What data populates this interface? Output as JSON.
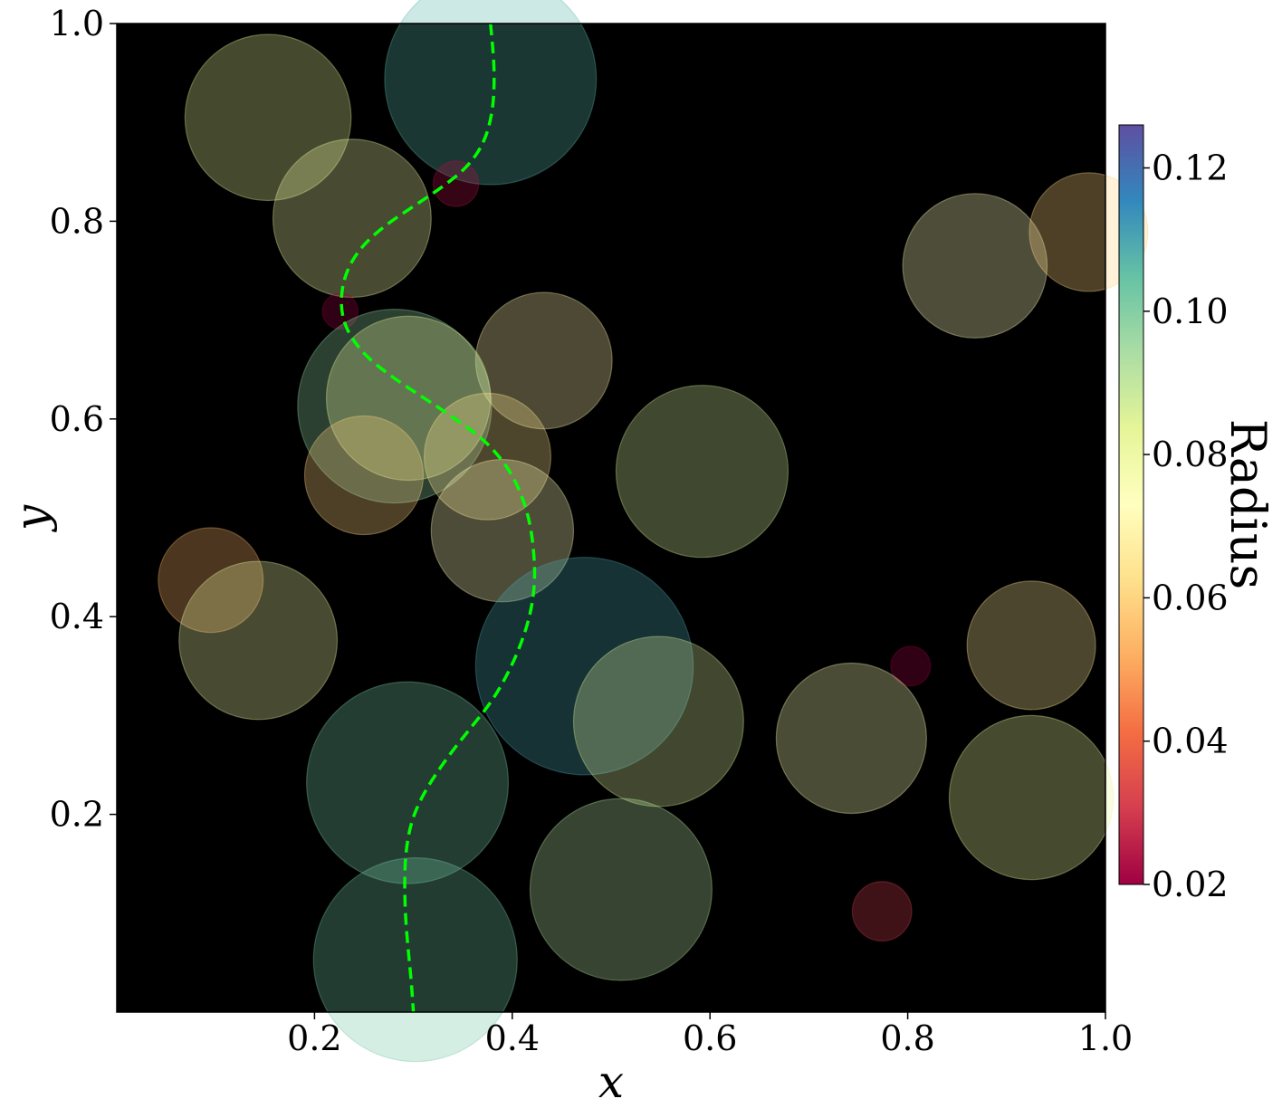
{
  "chart_data": {
    "type": "scatter",
    "xlabel": "x",
    "ylabel": "y",
    "xlim": [
      0,
      1
    ],
    "ylim": [
      0,
      1
    ],
    "x_ticks": [
      "0.2",
      "0.4",
      "0.6",
      "0.8",
      "1.0"
    ],
    "y_ticks": [
      "0.2",
      "0.4",
      "0.6",
      "0.8",
      "1.0"
    ],
    "background": "#000000",
    "grid": false,
    "colorbar": {
      "label": "Radius",
      "colormap": "Spectral",
      "range": [
        0.02,
        0.126
      ],
      "ticks": [
        "0.02",
        "0.04",
        "0.06",
        "0.08",
        "0.10",
        "0.12"
      ]
    },
    "circles": [
      {
        "x": 0.153,
        "y": 0.905,
        "r": 0.084
      },
      {
        "x": 0.378,
        "y": 0.944,
        "r": 0.107
      },
      {
        "x": 0.343,
        "y": 0.838,
        "r": 0.023
      },
      {
        "x": 0.238,
        "y": 0.803,
        "r": 0.08
      },
      {
        "x": 0.226,
        "y": 0.709,
        "r": 0.018
      },
      {
        "x": 0.432,
        "y": 0.659,
        "r": 0.069
      },
      {
        "x": 0.868,
        "y": 0.755,
        "r": 0.073
      },
      {
        "x": 0.983,
        "y": 0.789,
        "r": 0.06
      },
      {
        "x": 0.281,
        "y": 0.613,
        "r": 0.098
      },
      {
        "x": 0.295,
        "y": 0.621,
        "r": 0.083
      },
      {
        "x": 0.25,
        "y": 0.543,
        "r": 0.06
      },
      {
        "x": 0.375,
        "y": 0.562,
        "r": 0.064
      },
      {
        "x": 0.39,
        "y": 0.487,
        "r": 0.072
      },
      {
        "x": 0.592,
        "y": 0.547,
        "r": 0.087
      },
      {
        "x": 0.095,
        "y": 0.437,
        "r": 0.053
      },
      {
        "x": 0.143,
        "y": 0.376,
        "r": 0.08
      },
      {
        "x": 0.473,
        "y": 0.35,
        "r": 0.11
      },
      {
        "x": 0.548,
        "y": 0.294,
        "r": 0.086
      },
      {
        "x": 0.803,
        "y": 0.35,
        "r": 0.02
      },
      {
        "x": 0.743,
        "y": 0.277,
        "r": 0.076
      },
      {
        "x": 0.925,
        "y": 0.371,
        "r": 0.065
      },
      {
        "x": 0.925,
        "y": 0.217,
        "r": 0.083
      },
      {
        "x": 0.294,
        "y": 0.232,
        "r": 0.102
      },
      {
        "x": 0.51,
        "y": 0.124,
        "r": 0.092
      },
      {
        "x": 0.302,
        "y": 0.053,
        "r": 0.103
      },
      {
        "x": 0.774,
        "y": 0.102,
        "r": 0.03
      }
    ],
    "path": {
      "color": "#00ff00",
      "style": "dashed",
      "points": [
        [
          0.378,
          1.0
        ],
        [
          0.381,
          0.97
        ],
        [
          0.382,
          0.94
        ],
        [
          0.38,
          0.91
        ],
        [
          0.372,
          0.88
        ],
        [
          0.355,
          0.855
        ],
        [
          0.33,
          0.835
        ],
        [
          0.3,
          0.815
        ],
        [
          0.27,
          0.795
        ],
        [
          0.245,
          0.772
        ],
        [
          0.23,
          0.745
        ],
        [
          0.226,
          0.715
        ],
        [
          0.232,
          0.69
        ],
        [
          0.25,
          0.665
        ],
        [
          0.275,
          0.645
        ],
        [
          0.3,
          0.628
        ],
        [
          0.325,
          0.612
        ],
        [
          0.345,
          0.598
        ],
        [
          0.365,
          0.584
        ],
        [
          0.382,
          0.568
        ],
        [
          0.398,
          0.547
        ],
        [
          0.41,
          0.522
        ],
        [
          0.418,
          0.495
        ],
        [
          0.422,
          0.465
        ],
        [
          0.423,
          0.435
        ],
        [
          0.419,
          0.405
        ],
        [
          0.41,
          0.375
        ],
        [
          0.397,
          0.345
        ],
        [
          0.38,
          0.315
        ],
        [
          0.36,
          0.29
        ],
        [
          0.34,
          0.265
        ],
        [
          0.322,
          0.24
        ],
        [
          0.307,
          0.215
        ],
        [
          0.297,
          0.19
        ],
        [
          0.292,
          0.16
        ],
        [
          0.291,
          0.13
        ],
        [
          0.292,
          0.095
        ],
        [
          0.295,
          0.06
        ],
        [
          0.298,
          0.03
        ],
        [
          0.3,
          0.0
        ]
      ]
    }
  }
}
